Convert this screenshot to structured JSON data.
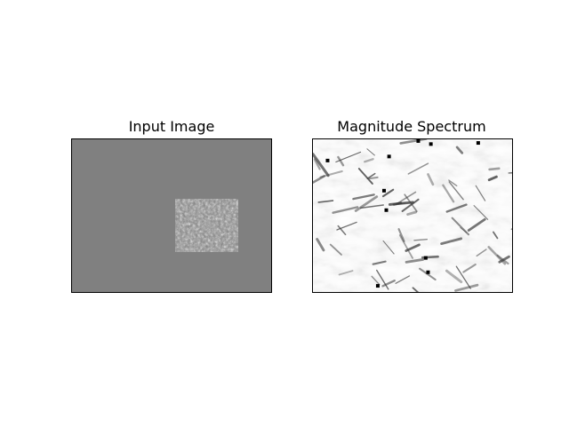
{
  "figure": {
    "background": "#ffffff",
    "axes_frame_color": "#000000"
  },
  "chart_data": [
    {
      "type": "heatmap",
      "title": "Input Image",
      "colormap": "gray",
      "grid": false,
      "axis_ticks": false,
      "background_gray": "#808080",
      "content": "noisy grayscale patch located right of center"
    },
    {
      "type": "heatmap",
      "title": "Magnitude Spectrum",
      "colormap": "gray",
      "grid": false,
      "axis_ticks": false,
      "content": "light gray textured field with scattered dark streaks"
    }
  ]
}
